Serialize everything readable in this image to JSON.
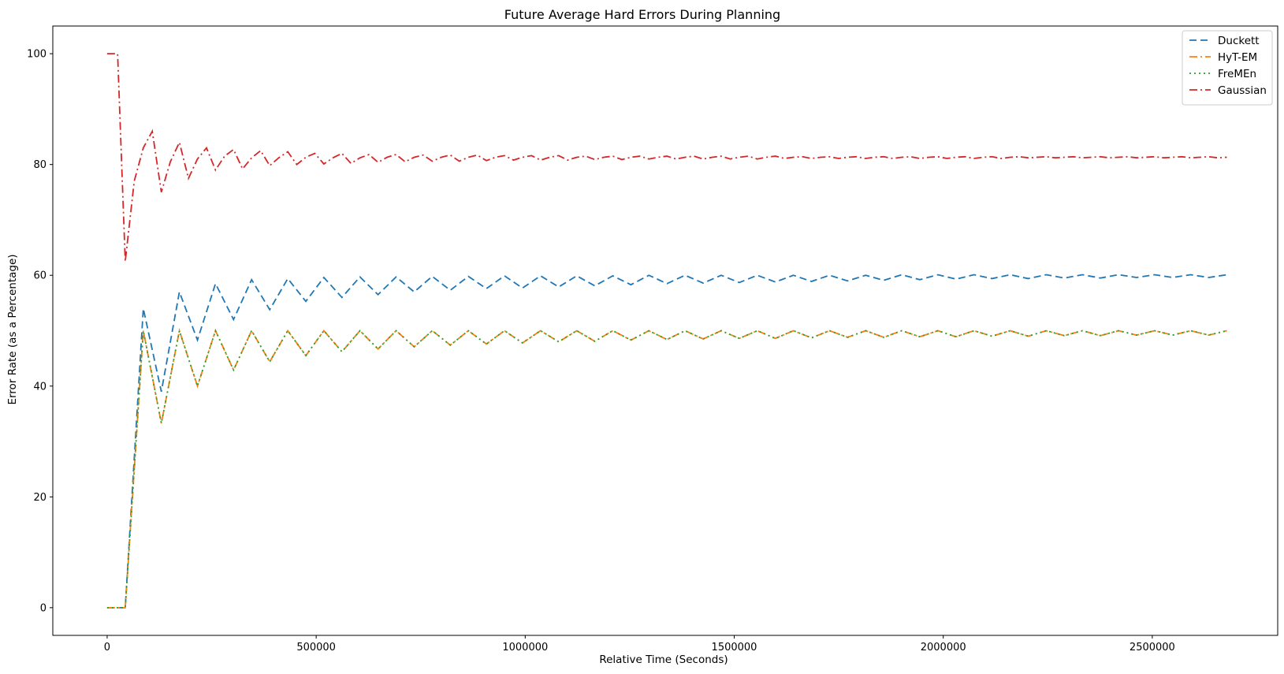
{
  "chart_data": {
    "type": "line",
    "title": "Future Average Hard Errors During Planning",
    "xlabel": "Relative Time (Seconds)",
    "ylabel": "Error Rate (as a Percentage)",
    "xlim": [
      -130000,
      2800000
    ],
    "ylim": [
      -5,
      105
    ],
    "xticks": [
      0,
      500000,
      1000000,
      1500000,
      2000000,
      2500000
    ],
    "xtick_labels": [
      "0",
      "500000",
      "1000000",
      "1500000",
      "2000000",
      "2500000"
    ],
    "yticks": [
      0,
      20,
      40,
      60,
      80,
      100
    ],
    "ytick_labels": [
      "0",
      "20",
      "40",
      "60",
      "80",
      "100"
    ],
    "grid": false,
    "legend_position": "top-right",
    "series": [
      {
        "name": "Duckett",
        "color": "#1f77b4",
        "dash": "dashed",
        "x": [
          0,
          43200,
          86400,
          129600,
          172800,
          216000,
          259200,
          302400,
          345600,
          388800,
          432000,
          475200,
          518400,
          561600,
          604800,
          648000,
          691200,
          734400,
          777600,
          820800,
          864000,
          907200,
          950400,
          993600,
          1036800,
          1080000,
          1123200,
          1166400,
          1209600,
          1252800,
          1296000,
          1339200,
          1382400,
          1425600,
          1468800,
          1512000,
          1555200,
          1598400,
          1641600,
          1684800,
          1728000,
          1771200,
          1814400,
          1857600,
          1900800,
          1944000,
          1987200,
          2030400,
          2073600,
          2116800,
          2160000,
          2203200,
          2246400,
          2289600,
          2332800,
          2376000,
          2419200,
          2462400,
          2505600,
          2548800,
          2592000,
          2635200,
          2678400
        ],
        "y": [
          0,
          0,
          54,
          39,
          57,
          48.3,
          58.5,
          52,
          59.2,
          53.8,
          59.4,
          55.3,
          59.6,
          56,
          59.7,
          56.5,
          59.7,
          57,
          59.8,
          57.3,
          59.8,
          57.6,
          59.9,
          57.7,
          59.9,
          57.9,
          59.9,
          58.1,
          59.9,
          58.3,
          60,
          58.5,
          60,
          58.6,
          60,
          58.7,
          60,
          58.8,
          60,
          58.9,
          60,
          59,
          60,
          59.1,
          60.1,
          59.2,
          60.1,
          59.3,
          60.1,
          59.4,
          60.1,
          59.4,
          60.1,
          59.5,
          60.1,
          59.5,
          60.1,
          59.6,
          60.1,
          59.6,
          60.1,
          59.6,
          60.1
        ]
      },
      {
        "name": "HyT-EM",
        "color": "#ff7f0e",
        "dash": "dashdot",
        "x": [
          0,
          43200,
          86400,
          129600,
          172800,
          216000,
          259200,
          302400,
          345600,
          388800,
          432000,
          475200,
          518400,
          561600,
          604800,
          648000,
          691200,
          734400,
          777600,
          820800,
          864000,
          907200,
          950400,
          993600,
          1036800,
          1080000,
          1123200,
          1166400,
          1209600,
          1252800,
          1296000,
          1339200,
          1382400,
          1425600,
          1468800,
          1512000,
          1555200,
          1598400,
          1641600,
          1684800,
          1728000,
          1771200,
          1814400,
          1857600,
          1900800,
          1944000,
          1987200,
          2030400,
          2073600,
          2116800,
          2160000,
          2203200,
          2246400,
          2289600,
          2332800,
          2376000,
          2419200,
          2462400,
          2505600,
          2548800,
          2592000,
          2635200,
          2678400
        ],
        "y": [
          0,
          0,
          50,
          33.3,
          50,
          40,
          50,
          42.9,
          50,
          44.4,
          50,
          45.5,
          50,
          46.2,
          50,
          46.7,
          50,
          47.1,
          50,
          47.4,
          50,
          47.6,
          50,
          47.8,
          50,
          48,
          50,
          48.1,
          50,
          48.3,
          50,
          48.4,
          50,
          48.5,
          50,
          48.6,
          50,
          48.6,
          50,
          48.7,
          50,
          48.8,
          50,
          48.8,
          50,
          48.9,
          50,
          48.9,
          50,
          49,
          50,
          49,
          50,
          49.1,
          50,
          49.1,
          50,
          49.2,
          50,
          49.2,
          50,
          49.2,
          50
        ]
      },
      {
        "name": "FreMEn",
        "color": "#2ca02c",
        "dash": "dotted",
        "x": [
          0,
          43200,
          86400,
          129600,
          172800,
          216000,
          259200,
          302400,
          345600,
          388800,
          432000,
          475200,
          518400,
          561600,
          604800,
          648000,
          691200,
          734400,
          777600,
          820800,
          864000,
          907200,
          950400,
          993600,
          1036800,
          1080000,
          1123200,
          1166400,
          1209600,
          1252800,
          1296000,
          1339200,
          1382400,
          1425600,
          1468800,
          1512000,
          1555200,
          1598400,
          1641600,
          1684800,
          1728000,
          1771200,
          1814400,
          1857600,
          1900800,
          1944000,
          1987200,
          2030400,
          2073600,
          2116800,
          2160000,
          2203200,
          2246400,
          2289600,
          2332800,
          2376000,
          2419200,
          2462400,
          2505600,
          2548800,
          2592000,
          2635200,
          2678400
        ],
        "y": [
          0,
          0,
          50,
          33.3,
          50,
          40,
          50,
          42.9,
          50,
          44.4,
          50,
          45.5,
          50,
          46.2,
          50,
          46.7,
          50,
          47.1,
          50,
          47.4,
          50,
          47.6,
          50,
          47.8,
          50,
          48,
          50,
          48.1,
          50,
          48.3,
          50,
          48.4,
          50,
          48.5,
          50,
          48.6,
          50,
          48.6,
          50,
          48.7,
          50,
          48.8,
          50,
          48.8,
          50,
          48.9,
          50,
          48.9,
          50,
          49,
          50,
          49,
          50,
          49.1,
          50,
          49.1,
          50,
          49.2,
          50,
          49.2,
          50,
          49.2,
          50
        ]
      },
      {
        "name": "Gaussian",
        "color": "#d62728",
        "dash": "dashdot",
        "x": [
          0,
          25000,
          43200,
          64800,
          86400,
          108000,
          129600,
          151200,
          172800,
          194400,
          216000,
          237600,
          259200,
          280800,
          302400,
          324000,
          345600,
          367200,
          388800,
          410400,
          432000,
          453600,
          475200,
          496800,
          518400,
          540000,
          561600,
          583200,
          604800,
          626400,
          648000,
          669600,
          691200,
          712800,
          734400,
          756000,
          777600,
          799200,
          820800,
          842400,
          864000,
          885600,
          907200,
          928800,
          950400,
          972000,
          993600,
          1015200,
          1036800,
          1058400,
          1080000,
          1101600,
          1123200,
          1144800,
          1166400,
          1188000,
          1209600,
          1231200,
          1252800,
          1274400,
          1296000,
          1317600,
          1339200,
          1360800,
          1382400,
          1404000,
          1425600,
          1447200,
          1468800,
          1490400,
          1512000,
          1533600,
          1555200,
          1576800,
          1598400,
          1620000,
          1641600,
          1663200,
          1684800,
          1706400,
          1728000,
          1749600,
          1771200,
          1792800,
          1814400,
          1836000,
          1857600,
          1879200,
          1900800,
          1922400,
          1944000,
          1965600,
          1987200,
          2008800,
          2030400,
          2052000,
          2073600,
          2095200,
          2116800,
          2138400,
          2160000,
          2181600,
          2203200,
          2224800,
          2246400,
          2268000,
          2289600,
          2311200,
          2332800,
          2354400,
          2376000,
          2397600,
          2419200,
          2440800,
          2462400,
          2484000,
          2505600,
          2527200,
          2548800,
          2570400,
          2592000,
          2613600,
          2635200,
          2656800,
          2678400
        ],
        "y": [
          100,
          100,
          62.5,
          77,
          83,
          86,
          75,
          80.5,
          84,
          77.5,
          81,
          83,
          79,
          81.5,
          82.7,
          79.2,
          81.2,
          82.5,
          79.8,
          81.2,
          82.3,
          80,
          81.3,
          82,
          80.1,
          81.2,
          82,
          80.2,
          81.2,
          81.8,
          80.4,
          81.3,
          81.8,
          80.5,
          81.3,
          81.7,
          80.6,
          81.3,
          81.7,
          80.6,
          81.3,
          81.7,
          80.7,
          81.3,
          81.6,
          80.8,
          81.3,
          81.6,
          80.8,
          81.3,
          81.6,
          80.8,
          81.3,
          81.5,
          80.9,
          81.3,
          81.5,
          80.9,
          81.3,
          81.5,
          81,
          81.3,
          81.5,
          81,
          81.3,
          81.5,
          81,
          81.3,
          81.5,
          81,
          81.3,
          81.5,
          81,
          81.3,
          81.5,
          81.1,
          81.3,
          81.4,
          81.1,
          81.3,
          81.4,
          81.1,
          81.3,
          81.4,
          81.1,
          81.3,
          81.4,
          81.1,
          81.3,
          81.4,
          81.1,
          81.3,
          81.4,
          81.1,
          81.3,
          81.4,
          81.1,
          81.3,
          81.4,
          81.1,
          81.3,
          81.4,
          81.2,
          81.3,
          81.4,
          81.2,
          81.3,
          81.4,
          81.2,
          81.3,
          81.4,
          81.2,
          81.3,
          81.4,
          81.2,
          81.3,
          81.4,
          81.2,
          81.3,
          81.4,
          81.2,
          81.3,
          81.4,
          81.2,
          81.3
        ]
      }
    ]
  }
}
